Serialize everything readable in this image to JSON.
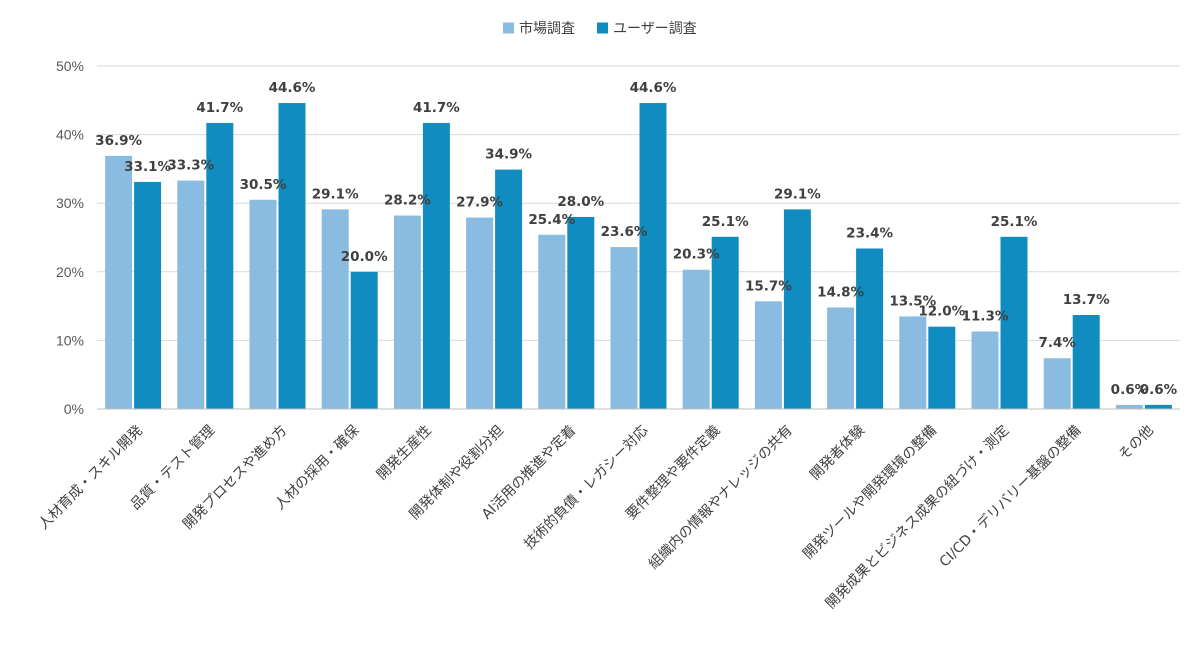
{
  "chart_data": {
    "type": "bar",
    "categories": [
      "人材育成・スキル開発",
      "品質・テスト管理",
      "開発プロセスや進め方",
      "人材の採用・確保",
      "開発生産性",
      "開発体制や役割分担",
      "AI活用の推進や定着",
      "技術的負債・レガシー対応",
      "要件整理や要件定義",
      "組織内の情報やナレッジの共有",
      "開発者体験",
      "開発ツールや開発環境の整備",
      "開発成果とビジネス成果の紐づけ・測定",
      "CI/CD・デリバリー基盤の整備",
      "その他"
    ],
    "series": [
      {
        "name": "市場調査",
        "color": "#8ABCE1",
        "values": [
          36.9,
          33.3,
          30.5,
          29.1,
          28.2,
          27.9,
          25.4,
          23.6,
          20.3,
          15.7,
          14.8,
          13.5,
          11.3,
          7.4,
          0.6
        ],
        "labels": [
          "36.9%",
          "33.3%",
          "30.5%",
          "29.1%",
          "28.2%",
          "27.9%",
          "25.4%",
          "23.6%",
          "20.3%",
          "15.7%",
          "14.8%",
          "13.5%",
          "11.3%",
          "7.4%",
          "0.6%"
        ]
      },
      {
        "name": "ユーザー調査",
        "color": "#108CC0",
        "values": [
          33.1,
          41.7,
          44.6,
          20.0,
          41.7,
          34.9,
          28.0,
          44.6,
          25.1,
          29.1,
          23.4,
          12.0,
          25.1,
          13.7,
          0.6
        ],
        "labels": [
          "33.1%",
          "41.7%",
          "44.6%",
          "20.0%",
          "41.7%",
          "34.9%",
          "28.0%",
          "44.6%",
          "25.1%",
          "29.1%",
          "23.4%",
          "12.0%",
          "25.1%",
          "13.7%",
          "0.6%"
        ]
      }
    ],
    "y_ticks": [
      "0%",
      "10%",
      "20%",
      "30%",
      "40%",
      "50%"
    ],
    "ylim": [
      0,
      50
    ],
    "grid": true,
    "legend_position": "top-center",
    "title": "",
    "xlabel": "",
    "ylabel": ""
  }
}
